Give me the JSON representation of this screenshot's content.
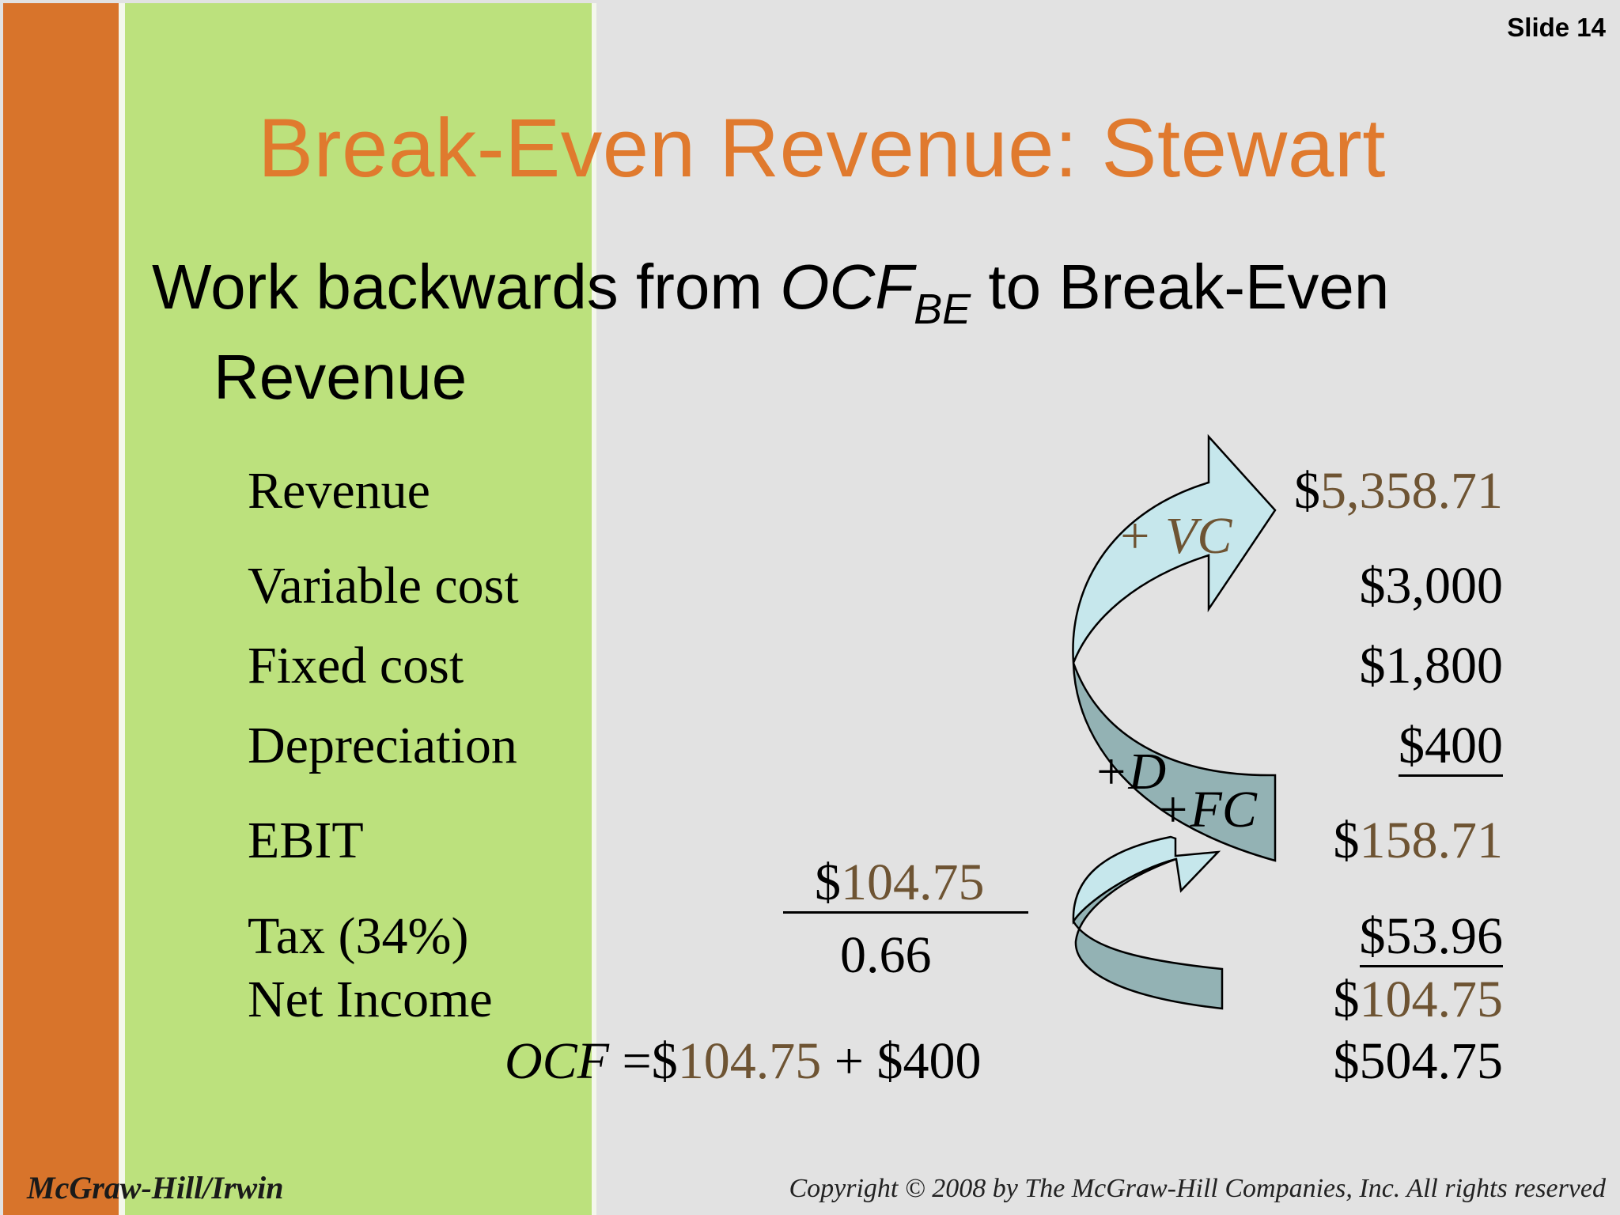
{
  "slide": {
    "number": "Slide 14",
    "title": "Break-Even Revenue: Stewart",
    "subtitle": {
      "prefix": "Work backwards from ",
      "ocf": "OCF",
      "ocf_sub": "BE",
      "suffix": " to Break-Even",
      "line2": "Revenue"
    }
  },
  "table": {
    "rows": [
      {
        "label": "Revenue",
        "value": "$5,358.71",
        "dollar": "$",
        "amount": "5,358.71"
      },
      {
        "label": "Variable cost",
        "value": "$3,000"
      },
      {
        "label": "Fixed cost",
        "value": "$1,800"
      },
      {
        "label": "Depreciation",
        "value": "$400"
      },
      {
        "label": "EBIT",
        "dollar": "$",
        "amount": "158.71"
      },
      {
        "label": "Tax (34%)",
        "value": "$53.96"
      },
      {
        "label": "Net Income",
        "dollar": "$",
        "amount": "104.75"
      }
    ],
    "ocf_value": "$504.75"
  },
  "fraction": {
    "numerator_dollar": "$",
    "numerator_amount": "104.75",
    "denominator": "0.66"
  },
  "ocf_formula": {
    "label": "OCF",
    "eq": " =$",
    "amount": "104.75",
    "rest": " + $400"
  },
  "arrows": {
    "vc_label": "+ VC",
    "d_label": "+D",
    "fc_label": "+FC"
  },
  "colors": {
    "title": "#e07a2e",
    "brown_value": "#6e5433",
    "orange_bar": "#d8742b",
    "green_panel": "#bce17d",
    "background": "#e2e2e2",
    "arrow_light": "#c6e7ec",
    "arrow_dark": "#8fb0b2"
  },
  "footer": {
    "publisher": "McGraw-Hill/Irwin",
    "copyright": "Copyright © 2008 by The McGraw-Hill Companies, Inc. All rights reserved"
  }
}
